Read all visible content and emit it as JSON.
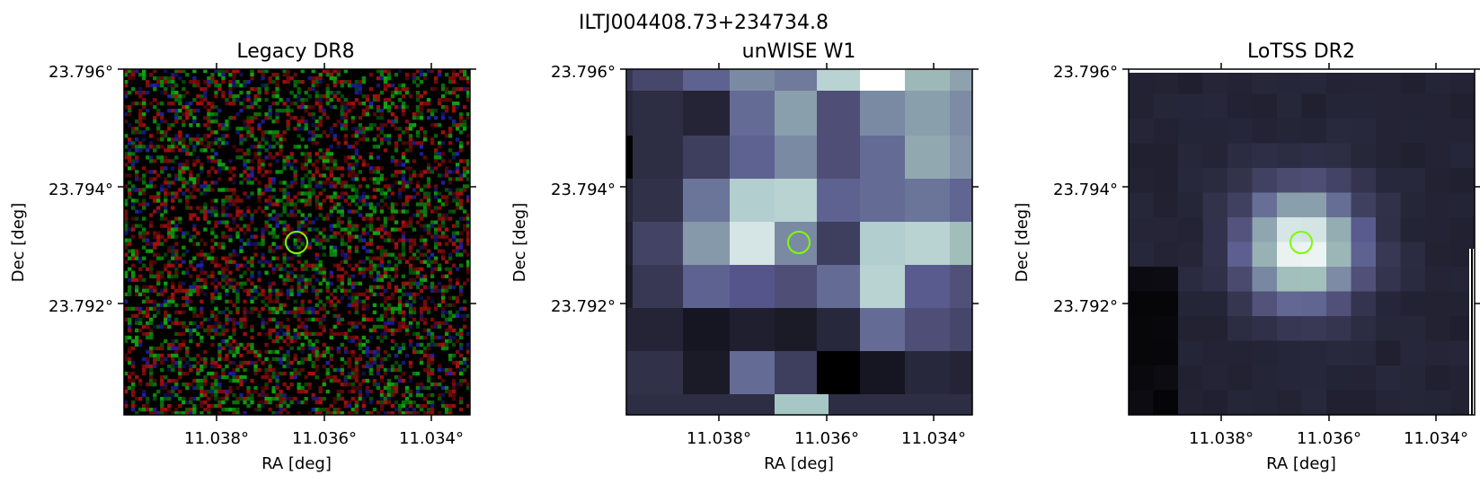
{
  "figure": {
    "suptitle": "ILTJ004408.73+234734.8"
  },
  "panels": [
    {
      "title": "Legacy DR8",
      "image_style": "rgb-noise",
      "xlabel": "RA [deg]",
      "ylabel": "Dec [deg]",
      "x_ticks": [
        "11.038°",
        "11.036°",
        "11.034°"
      ],
      "y_ticks": [
        "23.796°",
        "23.794°",
        "23.792°"
      ],
      "marker": {
        "shape": "circle",
        "color": "#7cfc00"
      }
    },
    {
      "title": "unWISE W1",
      "image_style": "bone-blocks",
      "xlabel": "RA [deg]",
      "ylabel": "Dec [deg]",
      "x_ticks": [
        "11.038°",
        "11.036°",
        "11.034°"
      ],
      "y_ticks": [
        "23.796°",
        "23.794°",
        "23.792°"
      ],
      "marker": {
        "shape": "circle",
        "color": "#7cfc00"
      }
    },
    {
      "title": "LoTSS DR2",
      "image_style": "bone-gaussian",
      "xlabel": "RA [deg]",
      "ylabel": "Dec [deg]",
      "x_ticks": [
        "11.038°",
        "11.036°",
        "11.034°"
      ],
      "y_ticks": [
        "23.796°",
        "23.794°",
        "23.792°"
      ],
      "marker": {
        "shape": "circle",
        "color": "#7cfc00"
      }
    }
  ]
}
